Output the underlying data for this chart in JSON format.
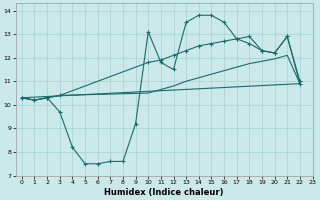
{
  "xlabel": "Humidex (Indice chaleur)",
  "xlim": [
    -0.5,
    23
  ],
  "ylim": [
    7,
    14.3
  ],
  "xticks": [
    0,
    1,
    2,
    3,
    4,
    5,
    6,
    7,
    8,
    9,
    10,
    11,
    12,
    13,
    14,
    15,
    16,
    17,
    18,
    19,
    20,
    21,
    22,
    23
  ],
  "yticks": [
    7,
    8,
    9,
    10,
    11,
    12,
    13,
    14
  ],
  "bg_color": "#cce9e9",
  "grid_color": "#aed4d4",
  "line_color": "#1a6b6b",
  "line1_x": [
    0,
    1,
    2,
    3,
    4,
    5,
    6,
    7,
    8,
    9,
    10,
    11,
    12,
    13,
    14,
    15,
    16,
    17,
    18,
    19,
    20,
    21,
    22
  ],
  "line1_y": [
    10.3,
    10.2,
    10.3,
    9.7,
    8.2,
    7.5,
    7.5,
    7.6,
    7.6,
    9.2,
    13.1,
    11.8,
    11.5,
    13.5,
    13.8,
    13.8,
    13.5,
    12.8,
    12.6,
    12.3,
    12.2,
    12.9,
    11.0
  ],
  "line2_x": [
    0,
    1,
    2,
    3,
    10,
    11,
    12,
    13,
    14,
    15,
    16,
    17,
    18,
    19,
    20,
    21,
    22
  ],
  "line2_y": [
    10.3,
    10.2,
    10.3,
    10.4,
    11.8,
    11.9,
    12.1,
    12.3,
    12.5,
    12.6,
    12.7,
    12.8,
    12.9,
    12.3,
    12.2,
    12.9,
    10.9
  ],
  "line3_x": [
    0,
    22
  ],
  "line3_y": [
    10.3,
    10.9
  ],
  "line4_x": [
    0,
    1,
    2,
    3,
    10,
    11,
    12,
    13,
    14,
    15,
    16,
    17,
    18,
    19,
    20,
    21,
    22
  ],
  "line4_y": [
    10.3,
    10.2,
    10.3,
    10.4,
    10.5,
    10.65,
    10.8,
    11.0,
    11.15,
    11.3,
    11.45,
    11.6,
    11.75,
    11.85,
    11.95,
    12.1,
    10.9
  ]
}
